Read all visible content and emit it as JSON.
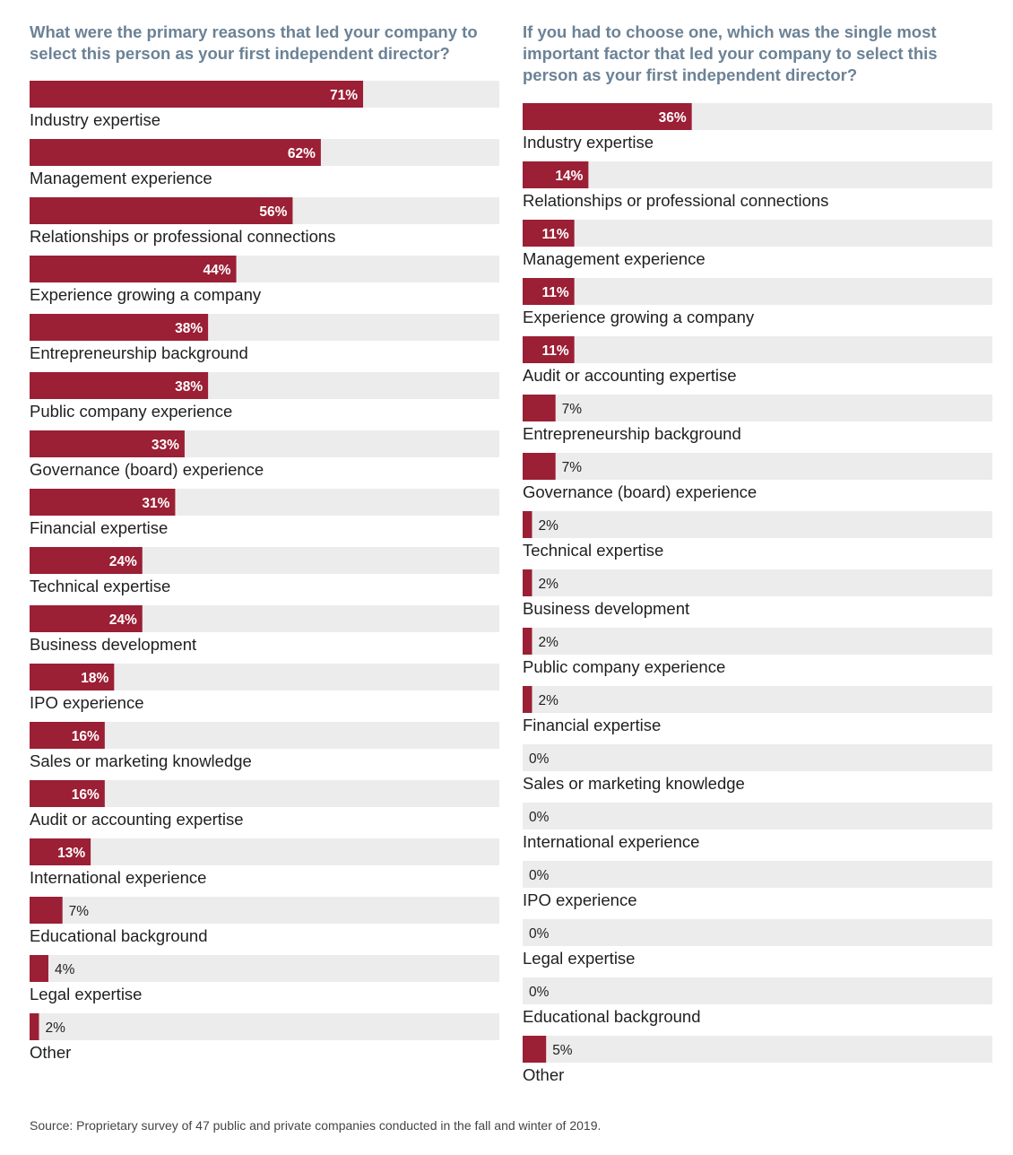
{
  "source_note": "Source: Proprietary survey of 47 public and private companies conducted in the fall and winter of 2019.",
  "colors": {
    "bar": "#9b1f35",
    "track": "#ececec",
    "title": "#6b8296",
    "text": "#1f1f1f"
  },
  "chart_data": [
    {
      "type": "bar",
      "orientation": "horizontal",
      "title": "What were the primary reasons that led your company to select this person as your first independent director?",
      "xlim": [
        0,
        100
      ],
      "value_suffix": "%",
      "categories": [
        "Industry expertise",
        "Management experience",
        "Relationships or professional connections",
        "Experience growing a company",
        "Entrepreneurship background",
        "Public company experience",
        "Governance (board) experience",
        "Financial expertise",
        "Technical expertise",
        "Business development",
        "IPO experience",
        "Sales or marketing knowledge",
        "Audit or accounting expertise",
        "International experience",
        "Educational background",
        "Legal expertise",
        "Other"
      ],
      "values": [
        71,
        62,
        56,
        44,
        38,
        38,
        33,
        31,
        24,
        24,
        18,
        16,
        16,
        13,
        7,
        4,
        2
      ]
    },
    {
      "type": "bar",
      "orientation": "horizontal",
      "title": "If you had to choose one, which was the single most important factor that led your company to select this person as your first independent director?",
      "xlim": [
        0,
        100
      ],
      "value_suffix": "%",
      "categories": [
        "Industry expertise",
        "Relationships or professional connections",
        "Management experience",
        "Experience growing a company",
        "Audit or accounting expertise",
        "Entrepreneurship background",
        "Governance (board) experience",
        "Technical expertise",
        "Business development",
        "Public company experience",
        "Financial expertise",
        "Sales or marketing knowledge",
        "International experience",
        "IPO experience",
        "Legal expertise",
        "Educational background",
        "Other"
      ],
      "values": [
        36,
        14,
        11,
        11,
        11,
        7,
        7,
        2,
        2,
        2,
        2,
        0,
        0,
        0,
        0,
        0,
        5
      ]
    }
  ]
}
